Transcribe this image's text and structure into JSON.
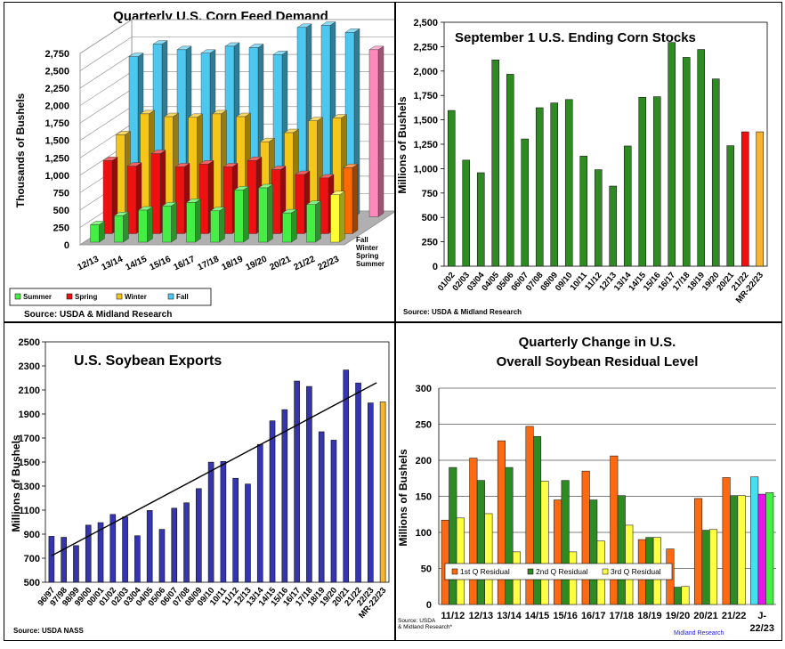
{
  "chart_data": [
    {
      "type": "bar",
      "title": "Quarterly U.S. Corn Feed Demand",
      "ylabel": "Thousands of Bushels",
      "ylim": [
        0,
        2750
      ],
      "yticks": [
        "0",
        "250",
        "500",
        "750",
        "1,000",
        "1,250",
        "1,500",
        "1,750",
        "2,000",
        "2,250",
        "2,500",
        "2,750"
      ],
      "depth_labels": [
        "Fall",
        "Winter",
        "Spring",
        "Summer"
      ],
      "categories": [
        "12/13",
        "13/14",
        "14/15",
        "15/16",
        "16/17",
        "17/18",
        "18/19",
        "19/20",
        "20/21",
        "21/22",
        "22/23"
      ],
      "series": [
        {
          "name": "Summer",
          "color": "#44ee44",
          "values": [
            250,
            380,
            460,
            520,
            570,
            450,
            750,
            780,
            420,
            540,
            680
          ]
        },
        {
          "name": "Spring",
          "color": "#ee1111",
          "values": [
            1050,
            970,
            1150,
            960,
            1000,
            960,
            1050,
            920,
            850,
            800,
            950
          ]
        },
        {
          "name": "Winter",
          "color": "#f5c518",
          "values": [
            1300,
            1600,
            1560,
            1550,
            1600,
            1560,
            1200,
            1330,
            1500,
            1540,
            0
          ]
        },
        {
          "name": "Fall",
          "color": "#4cc8f0",
          "values": [
            2300,
            2480,
            2400,
            2350,
            2450,
            2430,
            2330,
            2720,
            2750,
            2650,
            2400
          ]
        }
      ],
      "special_colors": {
        "22/23": [
          "#ffff33",
          "#ff6a00",
          "#6611ee",
          "#ff88bb"
        ]
      },
      "source": "Source: USDA & Midland Research"
    },
    {
      "type": "bar",
      "title": "September 1 U.S. Ending Corn Stocks",
      "ylabel": "Millions of Bushels",
      "ylim": [
        0,
        2500
      ],
      "yticks": [
        "0",
        "250",
        "500",
        "750",
        "1,000",
        "1,250",
        "1,500",
        "1,750",
        "2,000",
        "2,250",
        "2,500"
      ],
      "categories": [
        "01/02",
        "02/03",
        "03/04",
        "04/05",
        "05/06",
        "06/07",
        "07/08",
        "08/09",
        "09/10",
        "10/11",
        "11/12",
        "12/13",
        "13/14",
        "14/15",
        "15/16",
        "16/17",
        "17/18",
        "18/19",
        "19/20",
        "20/21",
        "21/22",
        "MR-22/23"
      ],
      "values": [
        1596,
        1087,
        958,
        2114,
        1967,
        1304,
        1624,
        1673,
        1708,
        1128,
        989,
        821,
        1232,
        1731,
        1737,
        2293,
        2140,
        2221,
        1919,
        1235,
        1377,
        1377
      ],
      "colors": {
        "default": "#2e8b22",
        "21/22": "#ee1111",
        "MR-22/23": "#f5b530"
      },
      "source": "Source: USDA & Midland Research"
    },
    {
      "type": "bar",
      "title": "U.S. Soybean Exports",
      "ylabel": "Millions of Bushels",
      "ylim": [
        500,
        2500
      ],
      "yticks": [
        "500",
        "700",
        "900",
        "1100",
        "1300",
        "1500",
        "1700",
        "1900",
        "2100",
        "2300",
        "2500"
      ],
      "categories": [
        "96/97",
        "97/98",
        "98/99",
        "99/00",
        "00/01",
        "01/02",
        "02/03",
        "03/04",
        "04/05",
        "05/06",
        "06/07",
        "07/08",
        "08/09",
        "09/10",
        "10/11",
        "11/12",
        "12/13",
        "13/14",
        "14/15",
        "15/16",
        "16/17",
        "17/18",
        "18/19",
        "19/20",
        "20/21",
        "21/22",
        "22/23",
        "MR-22/23"
      ],
      "values": [
        882,
        874,
        805,
        975,
        996,
        1064,
        1044,
        887,
        1097,
        940,
        1116,
        1161,
        1279,
        1499,
        1505,
        1365,
        1317,
        1647,
        1843,
        1936,
        2174,
        2129,
        1752,
        1682,
        2266,
        2158,
        1992,
        2000
      ],
      "colors": {
        "default": "#3535b0",
        "MR-22/23": "#f5b530"
      },
      "trendline": {
        "from": [
          0,
          720
        ],
        "to": [
          26.5,
          2160
        ]
      },
      "source": "Source: USDA NASS"
    },
    {
      "type": "bar",
      "title": "Quarterly Change in U.S.",
      "subtitle": "Overall Soybean Residual Level",
      "ylabel": "Millions of Bushels",
      "ylim": [
        0,
        300
      ],
      "yticks": [
        "0",
        "50",
        "100",
        "150",
        "200",
        "250",
        "300"
      ],
      "categories": [
        "11/12",
        "12/13",
        "13/14",
        "14/15",
        "15/16",
        "16/17",
        "17/18",
        "18/19",
        "19/20",
        "20/21",
        "21/22",
        "J-22/23"
      ],
      "series": [
        {
          "name": "1st Q Residual",
          "color": "#ff6a10",
          "values": [
            117,
            203,
            227,
            247,
            145,
            185,
            206,
            90,
            77,
            147,
            176,
            177
          ]
        },
        {
          "name": "2nd Q Residual",
          "color": "#2e8b22",
          "values": [
            190,
            172,
            190,
            233,
            172,
            145,
            151,
            93,
            24,
            103,
            151,
            153
          ]
        },
        {
          "name": "3rd Q Residual",
          "color": "#ffff44",
          "values": [
            120,
            126,
            73,
            171,
            73,
            88,
            110,
            93,
            25,
            104,
            151,
            155
          ]
        }
      ],
      "special_colors": {
        "J-22/23": [
          "#44e0f0",
          "#ee11ee",
          "#44ee44"
        ]
      },
      "source": "Source: USDA\n& Midland Research*",
      "brand": "Midland Research"
    }
  ]
}
